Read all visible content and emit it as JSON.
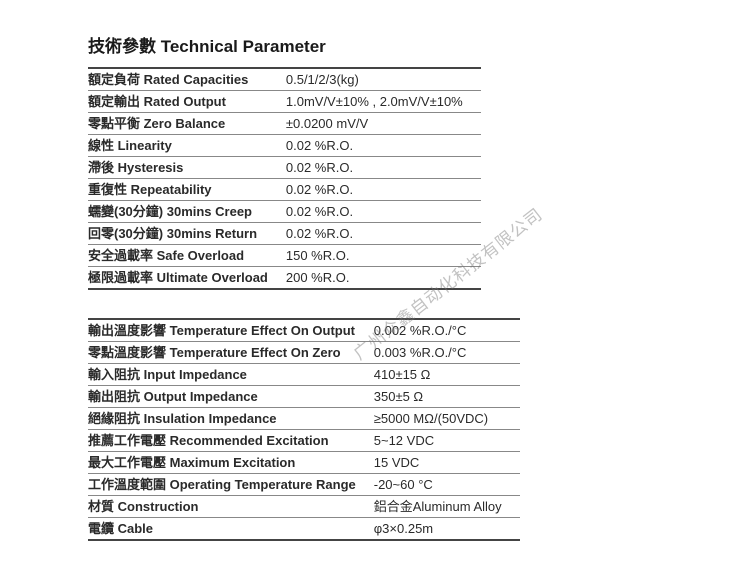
{
  "title": "技術參數 Technical Parameter",
  "watermark": "广州众鑫自动化科技有限公司",
  "table1": {
    "rows": [
      {
        "label": "額定負荷 Rated Capacities",
        "value": "0.5/1/2/3(kg)"
      },
      {
        "label": "額定輸出 Rated Output",
        "value": "1.0mV/V±10% , 2.0mV/V±10%"
      },
      {
        "label": "零點平衡 Zero Balance",
        "value": "±0.0200 mV/V"
      },
      {
        "label": "線性 Linearity",
        "value": "0.02 %R.O."
      },
      {
        "label": "滯後 Hysteresis",
        "value": "0.02 %R.O."
      },
      {
        "label": "重復性 Repeatability",
        "value": "0.02 %R.O."
      },
      {
        "label": "蠕變(30分鐘) 30mins Creep",
        "value": "0.02 %R.O."
      },
      {
        "label": "回零(30分鐘) 30mins Return",
        "value": "0.02 %R.O."
      },
      {
        "label": "安全過載率 Safe Overload",
        "value": "150 %R.O."
      },
      {
        "label": "極限過載率 Ultimate Overload",
        "value": "200 %R.O."
      }
    ]
  },
  "table2": {
    "rows": [
      {
        "label": "輸出溫度影響 Temperature Effect On Output",
        "value": "0.002 %R.O./°C"
      },
      {
        "label": "零點溫度影響 Temperature Effect On Zero",
        "value": "0.003 %R.O./°C"
      },
      {
        "label": "輸入阻抗 Input Impedance",
        "value": "410±15 Ω"
      },
      {
        "label": "輸出阻抗 Output Impedance",
        "value": "350±5 Ω"
      },
      {
        "label": "絕緣阻抗 Insulation Impedance",
        "value": "≥5000 MΩ/(50VDC)"
      },
      {
        "label": "推薦工作電壓 Recommended Excitation",
        "value": "5~12 VDC"
      },
      {
        "label": "最大工作電壓 Maximum Excitation",
        "value": "15 VDC"
      },
      {
        "label": "工作溫度範圍 Operating Temperature Range",
        "value": "-20~60 °C"
      },
      {
        "label": "材質 Construction",
        "value": "鋁合金Aluminum Alloy"
      },
      {
        "label": "電纜 Cable",
        "value": "φ3×0.25m"
      }
    ]
  }
}
